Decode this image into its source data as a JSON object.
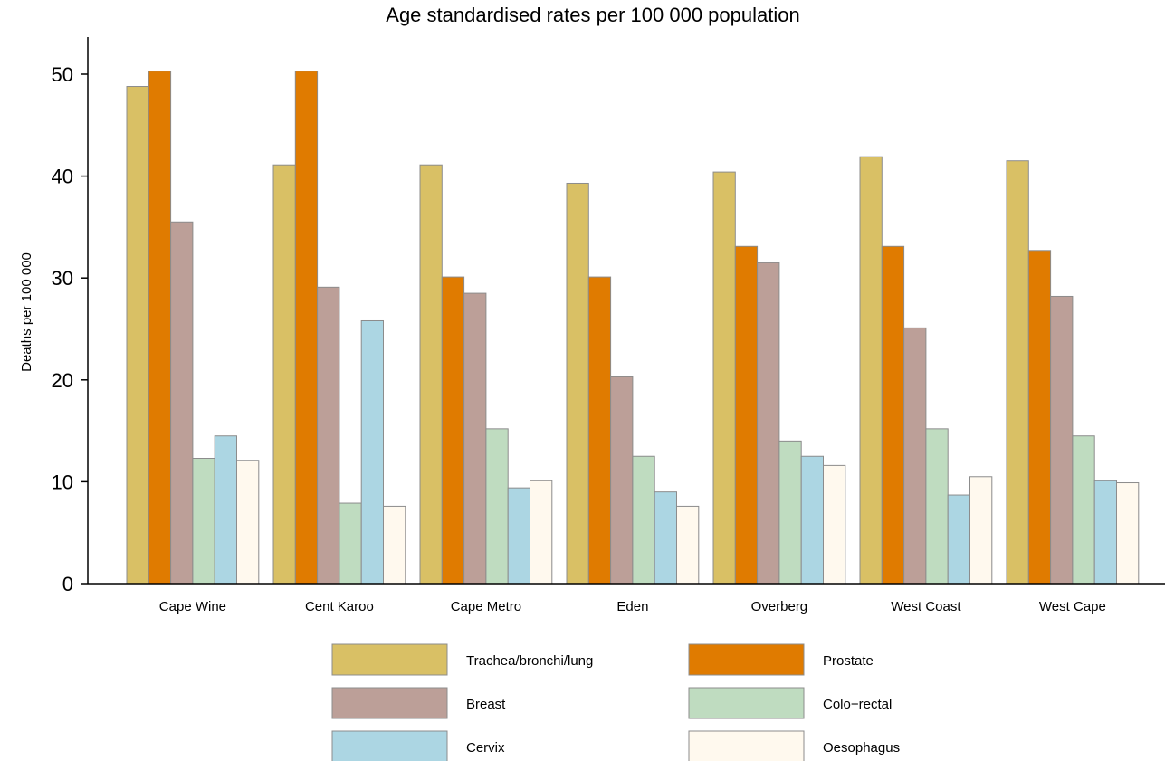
{
  "chart_data": {
    "type": "bar",
    "title": "Age standardised rates per 100 000 population",
    "xlabel": "",
    "ylabel": "Deaths per 100 000",
    "ylim": [
      0,
      54
    ],
    "yticks": [
      0,
      10,
      20,
      30,
      40,
      50
    ],
    "grid": false,
    "legend_position": "bottom",
    "categories": [
      "Cape Wine",
      "Cent Karoo",
      "Cape Metro",
      "Eden",
      "Overberg",
      "West Coast",
      "West Cape"
    ],
    "series": [
      {
        "name": "Trachea/bronchi/lung",
        "color": "#d9c065",
        "values": [
          48.8,
          41.1,
          41.1,
          39.3,
          40.4,
          41.9,
          41.5
        ]
      },
      {
        "name": "Prostate",
        "color": "#e07b00",
        "values": [
          50.3,
          50.3,
          30.1,
          30.1,
          33.1,
          33.1,
          32.7
        ]
      },
      {
        "name": "Breast",
        "color": "#bc9f98",
        "values": [
          35.5,
          29.1,
          28.5,
          20.3,
          31.5,
          25.1,
          28.2
        ]
      },
      {
        "name": "Colo−rectal",
        "color": "#bfdcc0",
        "values": [
          12.3,
          7.9,
          15.2,
          12.5,
          14.0,
          15.2,
          14.5
        ]
      },
      {
        "name": "Cervix",
        "color": "#acd6e3",
        "values": [
          14.5,
          25.8,
          9.4,
          9.0,
          12.5,
          8.7,
          10.1
        ]
      },
      {
        "name": "Oesophagus",
        "color": "#fff9ee",
        "values": [
          12.1,
          7.6,
          10.1,
          7.6,
          11.6,
          10.5,
          9.9
        ]
      }
    ]
  }
}
